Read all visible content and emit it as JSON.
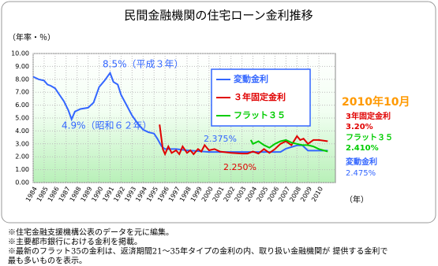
{
  "chart_data": {
    "type": "line",
    "title": "民間金融機関の住宅ローン金利推移",
    "y_label": "（年率・％）",
    "x_label": "（年）",
    "xlim": [
      1984,
      2011.5
    ],
    "xticks": [
      1984,
      1985,
      1986,
      1987,
      1988,
      1989,
      1990,
      1991,
      1992,
      1993,
      1994,
      1995,
      1996,
      1997,
      1998,
      1999,
      2000,
      2001,
      2002,
      2003,
      2004,
      2005,
      2006,
      2007,
      2008,
      2009,
      2010
    ],
    "ylim": [
      0,
      10
    ],
    "yticks": [
      {
        "value": 10,
        "label": "10.00"
      },
      {
        "value": 9,
        "label": "9.00"
      },
      {
        "value": 8,
        "label": "8.00"
      },
      {
        "value": 7,
        "label": "7.00"
      },
      {
        "value": 6,
        "label": "6.00"
      },
      {
        "value": 5,
        "label": "5.00"
      },
      {
        "value": 4,
        "label": "4.00"
      },
      {
        "value": 3,
        "label": "3.00"
      },
      {
        "value": 2,
        "label": "2.00"
      },
      {
        "value": 1,
        "label": "1.00"
      },
      {
        "value": 0,
        "label": "0.00"
      }
    ],
    "grid": true,
    "series": [
      {
        "name": "変動金利",
        "color": "#3366ff",
        "x": [
          1984,
          1984.5,
          1985,
          1985.3,
          1985.6,
          1986,
          1986.4,
          1986.8,
          1987.2,
          1987.5,
          1987.8,
          1988.3,
          1989,
          1989.5,
          1990,
          1990.5,
          1991,
          1991.3,
          1991.7,
          1992,
          1992.5,
          1993,
          1993.5,
          1994,
          1994.5,
          1995,
          1995.3,
          1995.7,
          1996,
          1997,
          1998,
          2000,
          2001,
          2002,
          2004,
          2006,
          2006.5,
          2007,
          2008,
          2008.5,
          2009,
          2010,
          2010.8
        ],
        "values": [
          8.2,
          8.0,
          7.9,
          7.6,
          7.5,
          7.3,
          6.8,
          6.3,
          5.6,
          4.9,
          5.5,
          5.7,
          5.8,
          6.2,
          7.4,
          7.9,
          8.5,
          7.8,
          7.6,
          6.8,
          6.0,
          5.2,
          4.6,
          4.1,
          3.9,
          3.8,
          3.4,
          2.8,
          2.6,
          2.6,
          2.5,
          2.375,
          2.375,
          2.375,
          2.375,
          2.375,
          2.375,
          2.625,
          2.875,
          2.875,
          2.475,
          2.475,
          2.475
        ]
      },
      {
        "name": "３年固定金利",
        "color": "#e00000",
        "x": [
          1995.5,
          1995.8,
          1996,
          1996.3,
          1996.6,
          1997,
          1997.3,
          1997.6,
          1998,
          1998.3,
          1998.6,
          1999,
          1999.3,
          1999.6,
          2000,
          2000.5,
          2001,
          2002,
          2003,
          2003.5,
          2004,
          2004.5,
          2005,
          2005.5,
          2006,
          2006.5,
          2007,
          2007.5,
          2008,
          2008.3,
          2008.6,
          2009,
          2009.5,
          2010,
          2010.8
        ],
        "values": [
          4.5,
          2.6,
          2.2,
          2.8,
          2.3,
          2.5,
          2.2,
          2.8,
          2.3,
          2.5,
          2.2,
          2.6,
          2.4,
          2.9,
          2.5,
          2.6,
          2.4,
          2.3,
          2.25,
          2.25,
          2.4,
          2.25,
          2.6,
          2.3,
          2.6,
          3.0,
          3.2,
          2.9,
          3.6,
          3.3,
          3.4,
          3.0,
          3.3,
          3.3,
          3.2
        ]
      },
      {
        "name": "フラット３５",
        "color": "#00cc00",
        "x": [
          2003.8,
          2004,
          2004.5,
          2005,
          2005.5,
          2006,
          2006.5,
          2007,
          2007.5,
          2008,
          2008.5,
          2009,
          2009.5,
          2010,
          2010.4,
          2010.8
        ],
        "values": [
          3.3,
          3.0,
          3.2,
          2.9,
          2.7,
          3.0,
          3.2,
          3.3,
          3.1,
          3.0,
          2.9,
          2.9,
          2.8,
          2.6,
          2.5,
          2.41
        ]
      }
    ],
    "annotations": [
      {
        "text": "8.5%（平成３年）",
        "color": "#3366ff"
      },
      {
        "text": "4.9%（昭和６２年）",
        "color": "#3366ff"
      },
      {
        "text": "2.375%",
        "color": "#3366ff"
      },
      {
        "text": "2.250%",
        "color": "#e00000"
      },
      {
        "text": "2010年10月",
        "color": "#ff9900"
      },
      {
        "text": "3年固定金利",
        "color": "#e00000"
      },
      {
        "text": "3.20%",
        "color": "#e00000"
      },
      {
        "text": "フラット３５",
        "color": "#00cc00"
      },
      {
        "text": "2.410%",
        "color": "#00cc00"
      },
      {
        "text": "変動金利",
        "color": "#3366ff"
      },
      {
        "text": "2.475%",
        "color": "#3366ff"
      }
    ]
  },
  "notes": [
    "※住宅金融支援機構公表のデータを元に編集。",
    "※主要都市銀行における金利を掲載。",
    "※最新のフラット35の金利は、返済期間21～35年タイプの金利の内、取り扱い金融機関が 提供する金利で",
    "最も多いものを表示。"
  ]
}
